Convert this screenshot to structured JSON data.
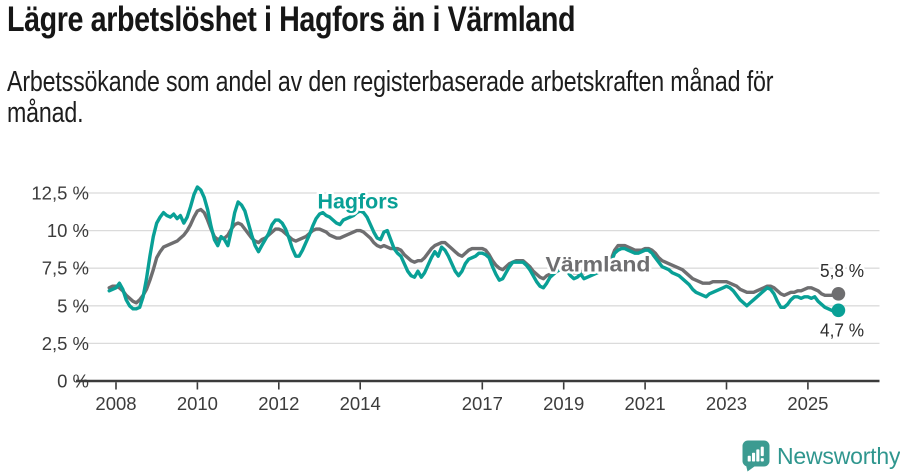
{
  "title": "Lägre arbetslöshet i Hagfors än i Värmland",
  "subtitle_lines": [
    "Arbetssökande som andel av den registerbaserade arbetskraften månad för",
    "månad."
  ],
  "chart_data": {
    "type": "line",
    "title": "Lägre arbetslöshet i Hagfors än i Värmland",
    "subtitle": "Arbetssökande som andel av den registerbaserade arbetskraften månad för månad.",
    "unit": "percent",
    "x_start": {
      "year": 2007,
      "month": 11
    },
    "x_step_months": 1,
    "x_tick_years": [
      2008,
      2010,
      2012,
      2014,
      2017,
      2019,
      2021,
      2023,
      2025
    ],
    "y_tick_values": [
      0,
      2.5,
      5,
      7.5,
      10,
      12.5
    ],
    "y_tick_labels": [
      "0 %",
      "2,5 %",
      "5 %",
      "7,5 %",
      "10 %",
      "12,5 %"
    ],
    "ylim": [
      0,
      13.5
    ],
    "grid": true,
    "legend_position": "inline-labels",
    "colors": {
      "grid": "#dbdbdb",
      "axis": "#3b3b3b",
      "tick_text": "#3c3c3c"
    },
    "series": [
      {
        "name": "Värmland",
        "color": "#6e6e70",
        "end_label": "5,8 %",
        "last_value": 5.8,
        "values": [
          6.2,
          6.3,
          6.3,
          6.2,
          6.0,
          5.7,
          5.5,
          5.3,
          5.2,
          5.4,
          5.7,
          6.1,
          6.7,
          7.4,
          8.2,
          8.6,
          8.9,
          9.0,
          9.1,
          9.2,
          9.3,
          9.5,
          9.7,
          10.0,
          10.4,
          10.9,
          11.3,
          11.4,
          11.2,
          10.7,
          10.1,
          9.6,
          9.4,
          9.5,
          9.5,
          9.7,
          10.1,
          10.4,
          10.5,
          10.4,
          10.1,
          9.8,
          9.5,
          9.3,
          9.2,
          9.4,
          9.5,
          9.7,
          9.9,
          10.1,
          10.1,
          10.0,
          9.8,
          9.6,
          9.4,
          9.3,
          9.4,
          9.5,
          9.6,
          9.8,
          10.0,
          10.1,
          10.1,
          10.0,
          9.9,
          9.7,
          9.6,
          9.5,
          9.5,
          9.6,
          9.7,
          9.8,
          9.9,
          10.0,
          10.0,
          9.9,
          9.7,
          9.5,
          9.2,
          9.0,
          8.9,
          9.0,
          8.9,
          8.8,
          8.8,
          8.8,
          8.7,
          8.4,
          8.2,
          8.0,
          7.9,
          8.0,
          8.0,
          8.2,
          8.5,
          8.8,
          9.0,
          9.1,
          9.2,
          9.2,
          9.0,
          8.8,
          8.6,
          8.4,
          8.3,
          8.5,
          8.7,
          8.8,
          8.8,
          8.8,
          8.8,
          8.7,
          8.4,
          8.0,
          7.7,
          7.5,
          7.4,
          7.6,
          7.8,
          7.9,
          8.0,
          8.0,
          8.0,
          7.8,
          7.6,
          7.3,
          7.1,
          6.9,
          6.8,
          7.0,
          7.1,
          7.2,
          7.3,
          7.4,
          7.5,
          7.4,
          7.3,
          7.2,
          7.2,
          7.3,
          7.2,
          7.3,
          7.3,
          7.4,
          7.4,
          7.5,
          7.6,
          7.7,
          8.1,
          8.7,
          9.0,
          9.0,
          9.0,
          8.9,
          8.8,
          8.7,
          8.7,
          8.7,
          8.8,
          8.8,
          8.7,
          8.5,
          8.2,
          8.0,
          7.9,
          7.8,
          7.7,
          7.6,
          7.5,
          7.4,
          7.2,
          7.0,
          6.8,
          6.7,
          6.6,
          6.5,
          6.5,
          6.5,
          6.6,
          6.6,
          6.6,
          6.6,
          6.6,
          6.5,
          6.4,
          6.3,
          6.1,
          6.0,
          5.9,
          5.9,
          5.9,
          6.0,
          6.1,
          6.2,
          6.3,
          6.3,
          6.2,
          6.0,
          5.8,
          5.7,
          5.8,
          5.9,
          5.9,
          6.0,
          6.0,
          6.1,
          6.2,
          6.2,
          6.1,
          6.0,
          5.8,
          5.7,
          5.7,
          5.7,
          5.8,
          5.8
        ]
      },
      {
        "name": "Hagfors",
        "color": "#09a096",
        "end_label": "4,7 %",
        "last_value": 4.7,
        "values": [
          6.0,
          6.1,
          6.2,
          6.5,
          6.1,
          5.4,
          5.0,
          4.8,
          4.8,
          4.9,
          5.6,
          6.8,
          8.3,
          9.6,
          10.5,
          10.9,
          11.2,
          11.0,
          10.9,
          11.1,
          10.8,
          11.0,
          10.5,
          10.9,
          11.6,
          12.4,
          12.9,
          12.7,
          12.2,
          11.4,
          10.3,
          9.4,
          9.0,
          9.6,
          9.4,
          9.0,
          10.0,
          11.2,
          11.9,
          11.7,
          11.3,
          10.5,
          9.7,
          9.0,
          8.6,
          9.0,
          9.4,
          9.8,
          10.4,
          10.7,
          10.7,
          10.5,
          10.1,
          9.5,
          8.8,
          8.3,
          8.3,
          8.7,
          9.2,
          9.7,
          10.3,
          10.8,
          11.1,
          11.2,
          11.0,
          10.9,
          10.7,
          10.5,
          10.4,
          10.7,
          10.8,
          10.9,
          11.0,
          11.2,
          11.3,
          11.2,
          10.9,
          10.4,
          9.9,
          9.5,
          9.4,
          9.9,
          10.0,
          9.4,
          8.8,
          8.5,
          8.3,
          7.8,
          7.3,
          7.0,
          6.9,
          7.3,
          6.9,
          7.2,
          7.7,
          8.2,
          8.6,
          8.3,
          8.9,
          8.7,
          8.3,
          7.8,
          7.3,
          7.0,
          7.3,
          7.8,
          8.1,
          8.2,
          8.3,
          8.5,
          8.5,
          8.4,
          8.2,
          7.6,
          7.1,
          6.7,
          6.8,
          7.2,
          7.6,
          7.9,
          7.9,
          7.9,
          7.9,
          7.7,
          7.4,
          7.0,
          6.6,
          6.3,
          6.2,
          6.5,
          6.9,
          7.1,
          7.3,
          7.4,
          7.4,
          7.3,
          7.0,
          6.8,
          6.9,
          7.1,
          6.8,
          6.9,
          7.0,
          7.1,
          7.2,
          7.3,
          7.4,
          7.5,
          7.9,
          8.5,
          8.7,
          8.8,
          8.8,
          8.7,
          8.6,
          8.5,
          8.5,
          8.6,
          8.7,
          8.7,
          8.5,
          8.2,
          7.9,
          7.6,
          7.5,
          7.4,
          7.2,
          7.1,
          7.0,
          6.8,
          6.6,
          6.4,
          6.1,
          5.9,
          5.8,
          5.7,
          5.6,
          5.8,
          5.9,
          6.0,
          6.1,
          6.2,
          6.3,
          6.2,
          6.0,
          5.7,
          5.4,
          5.2,
          5.0,
          5.2,
          5.4,
          5.6,
          5.8,
          6.0,
          6.2,
          6.1,
          5.8,
          5.3,
          4.9,
          4.9,
          5.1,
          5.4,
          5.6,
          5.6,
          5.5,
          5.6,
          5.6,
          5.5,
          5.6,
          5.3,
          5.1,
          4.9,
          4.8,
          4.7,
          4.6,
          4.7
        ]
      }
    ]
  },
  "branding": {
    "logo_text": "Newsworthy",
    "logo_color": "#2f968e",
    "icon": "newsworthy-speech-bubble-bar-chart-icon"
  }
}
